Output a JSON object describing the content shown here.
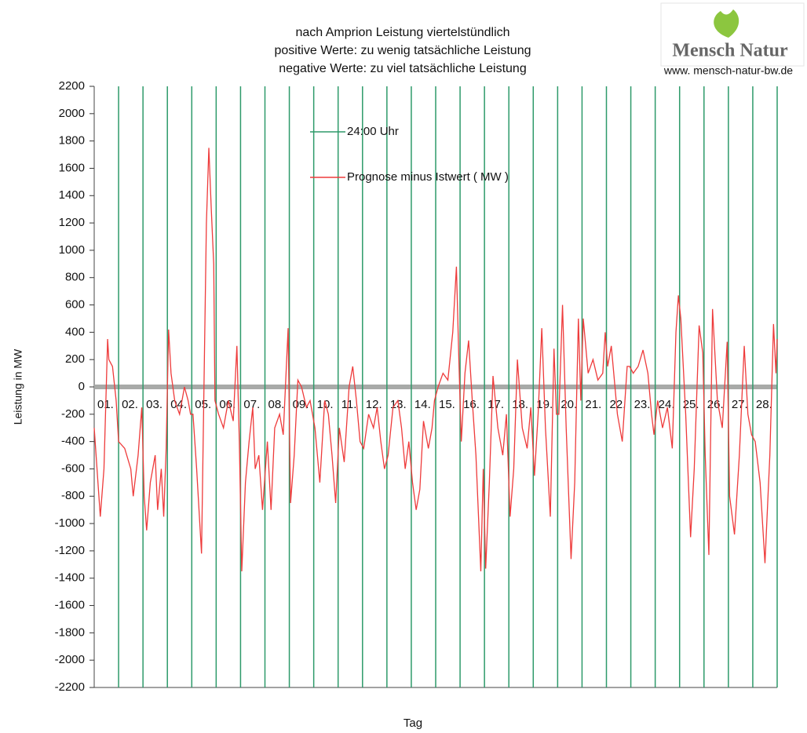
{
  "chart_data": {
    "type": "line",
    "title": [
      "nach Amprion Leistung viertelstündlich",
      "positive Werte: zu wenig tatsächliche Leistung",
      "negative Werte: zu viel tatsächliche Leistung"
    ],
    "xlabel": "Tag",
    "ylabel": "Leistung in MW",
    "xlim": [
      0,
      28
    ],
    "ylim": [
      -2200,
      2200
    ],
    "yticks": [
      -2200,
      -2000,
      -1800,
      -1600,
      -1400,
      -1200,
      -1000,
      -800,
      -600,
      -400,
      -200,
      0,
      200,
      400,
      600,
      800,
      1000,
      1200,
      1400,
      1600,
      1800,
      2000,
      2200
    ],
    "day_labels": [
      "01.",
      "02.",
      "03.",
      "04.",
      "05.",
      "06.",
      "07.",
      "08.",
      "09.",
      "10.",
      "11.",
      "12.",
      "13.",
      "14.",
      "15.",
      "16.",
      "17.",
      "18.",
      "19.",
      "20.",
      "21.",
      "22.",
      "23.",
      "24.",
      "25.",
      "26.",
      "27.",
      "28."
    ],
    "day_lines": {
      "name": "24:00 Uhr",
      "color": "#2e9a6a",
      "x": [
        1,
        2,
        3,
        4,
        5,
        6,
        7,
        8,
        9,
        10,
        11,
        12,
        13,
        14,
        15,
        16,
        17,
        18,
        19,
        20,
        21,
        22,
        23,
        24,
        25,
        26,
        27,
        28
      ]
    },
    "zero_line_color": "#a8aaa8",
    "series": [
      {
        "name": "Prognose minus Istwert ( MW )",
        "color": "#ee3b3b",
        "x": [
          0,
          0.25,
          0.4,
          0.55,
          0.6,
          0.75,
          0.9,
          1.0,
          1.25,
          1.5,
          1.6,
          1.8,
          1.95,
          2.05,
          2.15,
          2.3,
          2.5,
          2.6,
          2.75,
          2.85,
          2.95,
          3.05,
          3.15,
          3.3,
          3.5,
          3.7,
          3.85,
          3.95,
          4.05,
          4.2,
          4.4,
          4.5,
          4.6,
          4.7,
          4.8,
          4.9,
          4.95,
          5.1,
          5.3,
          5.5,
          5.7,
          5.85,
          5.95,
          6.05,
          6.2,
          6.35,
          6.5,
          6.6,
          6.75,
          6.9,
          7.1,
          7.25,
          7.4,
          7.6,
          7.75,
          7.95,
          8.05,
          8.2,
          8.35,
          8.5,
          8.7,
          8.85,
          8.95,
          9.05,
          9.25,
          9.45,
          9.6,
          9.75,
          9.9,
          10.05,
          10.25,
          10.45,
          10.6,
          10.75,
          10.9,
          11.05,
          11.25,
          11.45,
          11.6,
          11.75,
          11.9,
          12.05,
          12.25,
          12.45,
          12.6,
          12.75,
          12.9,
          13.05,
          13.2,
          13.35,
          13.5,
          13.7,
          13.85,
          13.95,
          14.1,
          14.3,
          14.5,
          14.7,
          14.85,
          14.95,
          15.05,
          15.2,
          15.35,
          15.5,
          15.65,
          15.85,
          15.95,
          16.05,
          16.2,
          16.35,
          16.55,
          16.75,
          16.9,
          17.05,
          17.2,
          17.35,
          17.55,
          17.75,
          17.9,
          18.05,
          18.2,
          18.35,
          18.5,
          18.7,
          18.85,
          18.95,
          19.05,
          19.2,
          19.35,
          19.55,
          19.7,
          19.85,
          19.95,
          20.05,
          20.25,
          20.45,
          20.65,
          20.85,
          20.95,
          21.05,
          21.2,
          21.45,
          21.65,
          21.85,
          21.95,
          22.1,
          22.3,
          22.5,
          22.7,
          22.85,
          22.95,
          23.1,
          23.3,
          23.5,
          23.7,
          23.85,
          23.95,
          24.05,
          24.25,
          24.45,
          24.6,
          24.8,
          24.95,
          25.05,
          25.2,
          25.35,
          25.55,
          25.75,
          25.95,
          26.05,
          26.25,
          26.45,
          26.65,
          26.8,
          26.95,
          27.1,
          27.3,
          27.5,
          27.7,
          27.85,
          27.95,
          28.0
        ],
        "values": [
          -300,
          -950,
          -600,
          350,
          200,
          150,
          -100,
          -400,
          -450,
          -600,
          -800,
          -500,
          -150,
          -800,
          -1050,
          -700,
          -500,
          -900,
          -600,
          -950,
          -450,
          420,
          100,
          -100,
          -200,
          0,
          -100,
          -200,
          -200,
          -600,
          -1220,
          0,
          1200,
          1750,
          1300,
          900,
          -100,
          -200,
          -300,
          -100,
          -250,
          300,
          -400,
          -1350,
          -700,
          -400,
          -150,
          -600,
          -500,
          -900,
          -400,
          -900,
          -300,
          -200,
          -350,
          430,
          -850,
          -500,
          50,
          0,
          -150,
          -100,
          -200,
          -300,
          -700,
          -100,
          -200,
          -500,
          -850,
          -300,
          -550,
          0,
          150,
          -100,
          -400,
          -450,
          -200,
          -300,
          -150,
          -400,
          -600,
          -500,
          -150,
          -100,
          -300,
          -600,
          -400,
          -700,
          -900,
          -750,
          -250,
          -450,
          -300,
          -100,
          0,
          100,
          50,
          400,
          880,
          200,
          -400,
          100,
          340,
          -100,
          -500,
          -1350,
          -600,
          -1330,
          -700,
          80,
          -300,
          -500,
          -200,
          -950,
          -600,
          200,
          -300,
          -450,
          -150,
          -650,
          -200,
          430,
          -300,
          -950,
          280,
          -200,
          -200,
          600,
          -300,
          -1260,
          -700,
          500,
          -100,
          500,
          100,
          200,
          50,
          100,
          400,
          150,
          300,
          -200,
          -400,
          150,
          150,
          100,
          150,
          270,
          100,
          -200,
          -350,
          -100,
          -300,
          -150,
          -450,
          400,
          670,
          500,
          -200,
          -1100,
          -600,
          450,
          250,
          -500,
          -1230,
          570,
          -100,
          -300,
          330,
          -800,
          -1080,
          -500,
          300,
          -200,
          -350,
          -400,
          -700,
          -1290,
          -500,
          460,
          100,
          350
        ]
      }
    ],
    "logo": {
      "name": "Mensch Natur",
      "url": "www. mensch-natur-bw.de"
    }
  }
}
